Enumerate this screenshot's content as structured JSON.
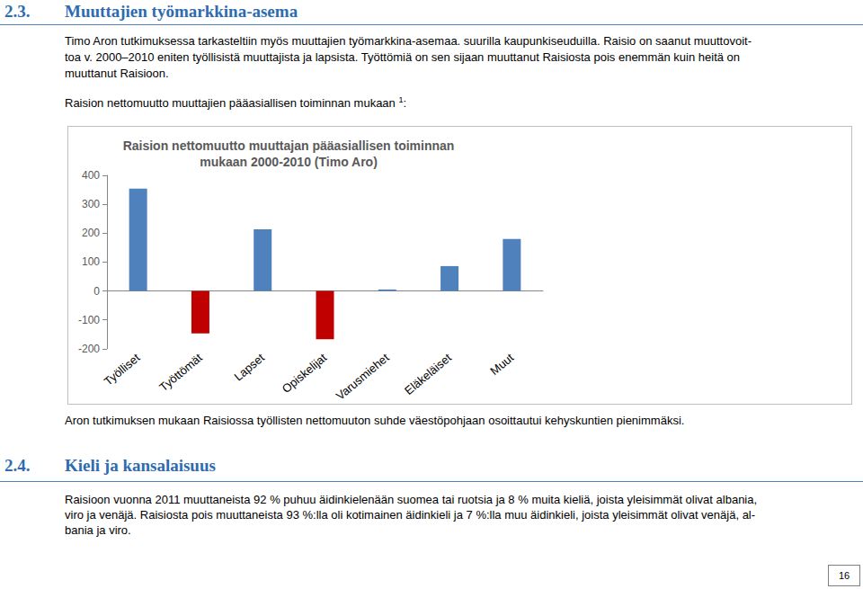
{
  "section_1": {
    "number": "2.3.",
    "title": "Muuttajien työmarkkina-asema",
    "paragraph_lines": [
      "Timo Aron tutkimuksessa tarkasteltiin myös muuttajien työmarkkina-asemaa. suurilla kaupunkiseuduilla. Raisio on saanut muuttovoit-",
      "toa v. 2000–2010 eniten työllisistä muuttajista ja lapsista. Työttömiä on sen sijaan muuttanut Raisiosta pois enemmän kuin heitä on",
      "muuttanut Raisioon."
    ]
  },
  "chart_intro": {
    "text": "Raision nettomuutto muuttajien pääasiallisen toiminnan mukaan ",
    "footnote": "1",
    "after": ":"
  },
  "chart_data": {
    "type": "bar",
    "title": "Raision nettomuutto muuttajan pääasiallisen toiminnan\nmukaan 2000-2010 (Timo Aro)",
    "categories": [
      "Työlliset",
      "Työttömät",
      "Lapset",
      "Opiskelijat",
      "Varusmiehet",
      "Eläkeläiset",
      "Muut"
    ],
    "values": [
      354,
      -147,
      213,
      -167,
      5,
      86,
      180
    ],
    "colors": [
      "#4f81bd",
      "#c00000",
      "#4f81bd",
      "#c00000",
      "#4f81bd",
      "#4f81bd",
      "#4f81bd"
    ],
    "ylim": [
      -200,
      400
    ],
    "yticks": [
      -200,
      -100,
      0,
      100,
      200,
      300,
      400
    ],
    "grid": false
  },
  "chart_note": "Aron tutkimuksen mukaan Raisiossa työllisten nettomuuton suhde väestöpohjaan osoittautui kehyskuntien pienimmäksi.",
  "section_2": {
    "number": "2.4.",
    "title": "Kieli ja kansalaisuus",
    "paragraph_lines": [
      "Raisioon vuonna 2011 muuttaneista 92 % puhuu äidinkielenään suomea tai ruotsia ja 8 % muita kieliä, joista yleisimmät olivat albania,",
      "viro ja venäjä. Raisiosta pois muuttaneista 93 %:lla oli kotimainen äidinkieli ja 7 %:lla muu äidinkieli, joista yleisimmät olivat venäjä, al-",
      "bania ja viro."
    ]
  },
  "page_number": "16"
}
